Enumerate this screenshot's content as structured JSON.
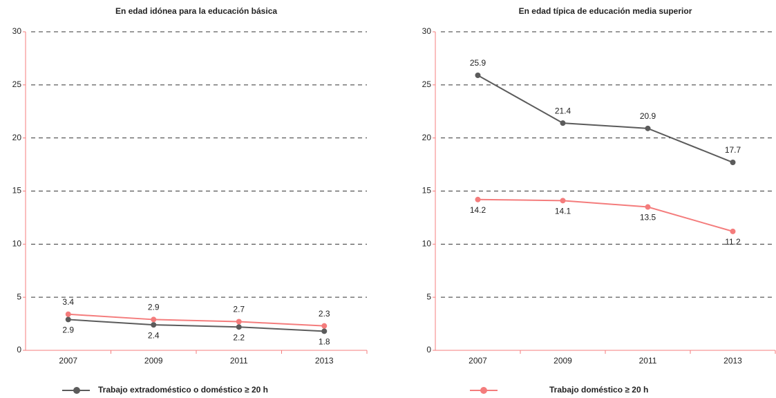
{
  "chart_data": [
    {
      "type": "line",
      "title": "En edad idónea para la educación básica",
      "categories": [
        "2007",
        "2009",
        "2011",
        "2013"
      ],
      "series": [
        {
          "name": "Trabajo extradoméstico o doméstico ≥ 20 h",
          "color": "#5b5b5b",
          "values": [
            2.9,
            2.4,
            2.2,
            1.8
          ]
        },
        {
          "name": "Trabajo doméstico ≥ 20 h",
          "color": "#f47c7c",
          "values": [
            3.4,
            2.9,
            2.7,
            2.3
          ]
        }
      ],
      "ylim": [
        0,
        30
      ],
      "yticks": [
        0,
        5,
        10,
        15,
        20,
        25,
        30
      ],
      "grid": true
    },
    {
      "type": "line",
      "title": "En edad típica de educación media superior",
      "categories": [
        "2007",
        "2009",
        "2011",
        "2013"
      ],
      "series": [
        {
          "name": "Trabajo extradoméstico o doméstico ≥ 20 h",
          "color": "#5b5b5b",
          "values": [
            25.9,
            21.4,
            20.9,
            17.7
          ]
        },
        {
          "name": "Trabajo doméstico ≥ 20 h",
          "color": "#f47c7c",
          "values": [
            14.2,
            14.1,
            13.5,
            11.2
          ]
        }
      ],
      "ylim": [
        0,
        30
      ],
      "yticks": [
        0,
        5,
        10,
        15,
        20,
        25,
        30
      ],
      "grid": true
    }
  ]
}
